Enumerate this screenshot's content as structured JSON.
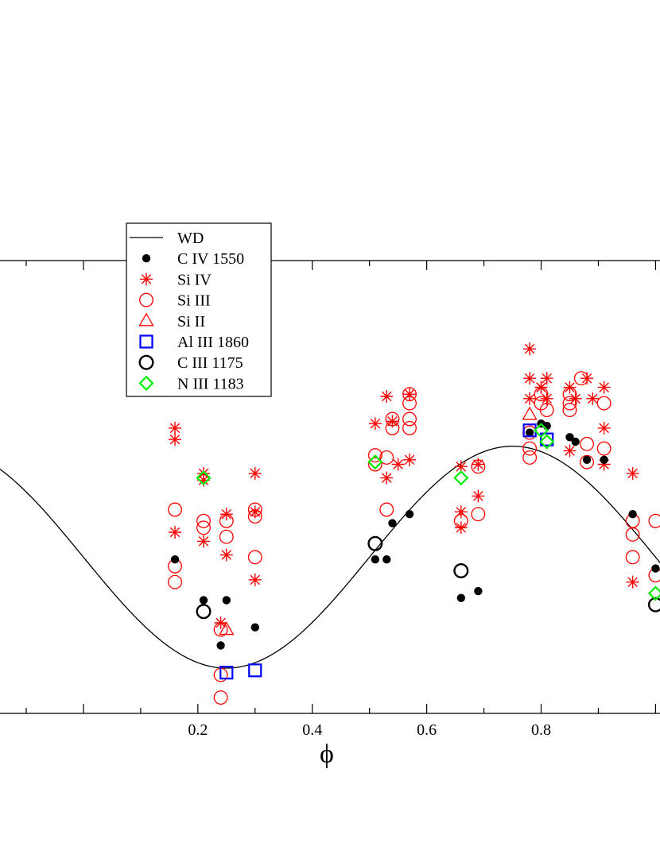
{
  "chart_data": {
    "type": "scatter",
    "title": "",
    "xlabel": "ϕ",
    "ylabel": "",
    "xlim": [
      -0.15,
      1.03
    ],
    "ylim": [
      0,
      10
    ],
    "x_ticks": [
      0.2,
      0.4,
      0.6,
      0.8
    ],
    "x_tick_labels": [
      "0.2",
      "0.4",
      "0.6",
      "0.8"
    ],
    "grid": false,
    "legend_position": "top-left",
    "legend": [
      {
        "name": "WD",
        "marker": "line",
        "color": "#000000"
      },
      {
        "name": "C IV 1550",
        "marker": "filled-circle",
        "color": "#000000"
      },
      {
        "name": "Si IV",
        "marker": "asterisk",
        "color": "#ff0000"
      },
      {
        "name": "Si III",
        "marker": "open-circle",
        "color": "#ff0000"
      },
      {
        "name": "Si II",
        "marker": "triangle",
        "color": "#ff0000"
      },
      {
        "name": "Al III 1860",
        "marker": "square",
        "color": "#0000ff"
      },
      {
        "name": "C III 1175",
        "marker": "open-circle-thick",
        "color": "#000000"
      },
      {
        "name": "N III 1183",
        "marker": "diamond",
        "color": "#00ee00"
      }
    ],
    "curve": {
      "name": "WD",
      "form": "sinusoid",
      "center": 3.45,
      "amplitude": 2.45,
      "phase_of_max": 0.75
    },
    "series": [
      {
        "name": "C IV 1550",
        "points": [
          [
            0.16,
            3.4
          ],
          [
            0.21,
            2.5
          ],
          [
            0.24,
            1.5
          ],
          [
            0.25,
            2.5
          ],
          [
            0.3,
            1.9
          ],
          [
            0.51,
            3.4
          ],
          [
            0.53,
            3.4
          ],
          [
            0.54,
            4.2
          ],
          [
            0.57,
            4.4
          ],
          [
            0.66,
            2.55
          ],
          [
            0.69,
            2.7
          ],
          [
            0.78,
            6.2
          ],
          [
            0.8,
            6.4
          ],
          [
            0.81,
            6.35
          ],
          [
            0.85,
            6.1
          ],
          [
            0.86,
            6.0
          ],
          [
            0.88,
            5.6
          ],
          [
            0.91,
            5.6
          ],
          [
            0.96,
            4.4
          ],
          [
            1.0,
            3.2
          ]
        ]
      },
      {
        "name": "Si IV",
        "points": [
          [
            0.16,
            6.3
          ],
          [
            0.16,
            6.05
          ],
          [
            0.16,
            4.0
          ],
          [
            0.21,
            5.3
          ],
          [
            0.21,
            5.15
          ],
          [
            0.21,
            3.8
          ],
          [
            0.24,
            2.0
          ],
          [
            0.25,
            4.4
          ],
          [
            0.25,
            3.5
          ],
          [
            0.3,
            5.3
          ],
          [
            0.3,
            4.45
          ],
          [
            0.3,
            2.95
          ],
          [
            0.51,
            6.4
          ],
          [
            0.53,
            7.0
          ],
          [
            0.53,
            5.2
          ],
          [
            0.54,
            6.45
          ],
          [
            0.55,
            5.5
          ],
          [
            0.57,
            7.05
          ],
          [
            0.57,
            5.6
          ],
          [
            0.66,
            5.45
          ],
          [
            0.66,
            4.45
          ],
          [
            0.66,
            4.1
          ],
          [
            0.69,
            5.5
          ],
          [
            0.69,
            4.8
          ],
          [
            0.78,
            8.05
          ],
          [
            0.78,
            7.4
          ],
          [
            0.78,
            6.95
          ],
          [
            0.8,
            7.2
          ],
          [
            0.8,
            7.2
          ],
          [
            0.81,
            7.4
          ],
          [
            0.81,
            6.95
          ],
          [
            0.85,
            7.2
          ],
          [
            0.86,
            6.95
          ],
          [
            0.88,
            7.4
          ],
          [
            0.89,
            6.95
          ],
          [
            0.91,
            7.2
          ],
          [
            0.91,
            6.3
          ],
          [
            0.91,
            5.5
          ],
          [
            0.85,
            5.8
          ],
          [
            0.96,
            5.3
          ],
          [
            0.96,
            2.9
          ]
        ]
      },
      {
        "name": "Si III",
        "points": [
          [
            0.16,
            4.5
          ],
          [
            0.16,
            3.25
          ],
          [
            0.16,
            2.9
          ],
          [
            0.21,
            4.25
          ],
          [
            0.21,
            4.1
          ],
          [
            0.25,
            4.25
          ],
          [
            0.25,
            3.9
          ],
          [
            0.24,
            1.85
          ],
          [
            0.24,
            0.85
          ],
          [
            0.24,
            0.35
          ],
          [
            0.3,
            4.5
          ],
          [
            0.3,
            4.35
          ],
          [
            0.3,
            3.45
          ],
          [
            0.51,
            5.7
          ],
          [
            0.51,
            5.5
          ],
          [
            0.53,
            5.65
          ],
          [
            0.53,
            4.5
          ],
          [
            0.54,
            6.5
          ],
          [
            0.54,
            6.3
          ],
          [
            0.57,
            7.05
          ],
          [
            0.57,
            6.85
          ],
          [
            0.57,
            6.5
          ],
          [
            0.57,
            6.3
          ],
          [
            0.66,
            4.25
          ],
          [
            0.69,
            5.45
          ],
          [
            0.69,
            4.4
          ],
          [
            0.78,
            6.2
          ],
          [
            0.78,
            5.85
          ],
          [
            0.78,
            5.65
          ],
          [
            0.8,
            7.05
          ],
          [
            0.8,
            6.85
          ],
          [
            0.81,
            6.7
          ],
          [
            0.85,
            7.05
          ],
          [
            0.85,
            6.85
          ],
          [
            0.85,
            6.7
          ],
          [
            0.87,
            7.4
          ],
          [
            0.88,
            5.95
          ],
          [
            0.88,
            5.55
          ],
          [
            0.91,
            6.85
          ],
          [
            0.91,
            5.85
          ],
          [
            0.96,
            4.25
          ],
          [
            0.96,
            3.95
          ],
          [
            0.96,
            3.45
          ],
          [
            1.0,
            3.05
          ],
          [
            1.0,
            4.25
          ]
        ]
      },
      {
        "name": "Si II",
        "points": [
          [
            0.25,
            1.85
          ],
          [
            0.78,
            6.6
          ]
        ]
      },
      {
        "name": "Al III 1860",
        "points": [
          [
            0.25,
            0.9
          ],
          [
            0.3,
            0.95
          ],
          [
            0.78,
            6.25
          ],
          [
            0.81,
            6.05
          ]
        ]
      },
      {
        "name": "C III 1175",
        "points": [
          [
            0.21,
            2.25
          ],
          [
            0.51,
            3.75
          ],
          [
            0.66,
            3.15
          ],
          [
            1.0,
            2.4
          ]
        ]
      },
      {
        "name": "N III 1183",
        "points": [
          [
            0.21,
            5.2
          ],
          [
            0.51,
            5.55
          ],
          [
            0.66,
            5.2
          ],
          [
            0.8,
            6.25
          ],
          [
            0.81,
            6.0
          ],
          [
            1.0,
            2.65
          ]
        ]
      }
    ]
  }
}
